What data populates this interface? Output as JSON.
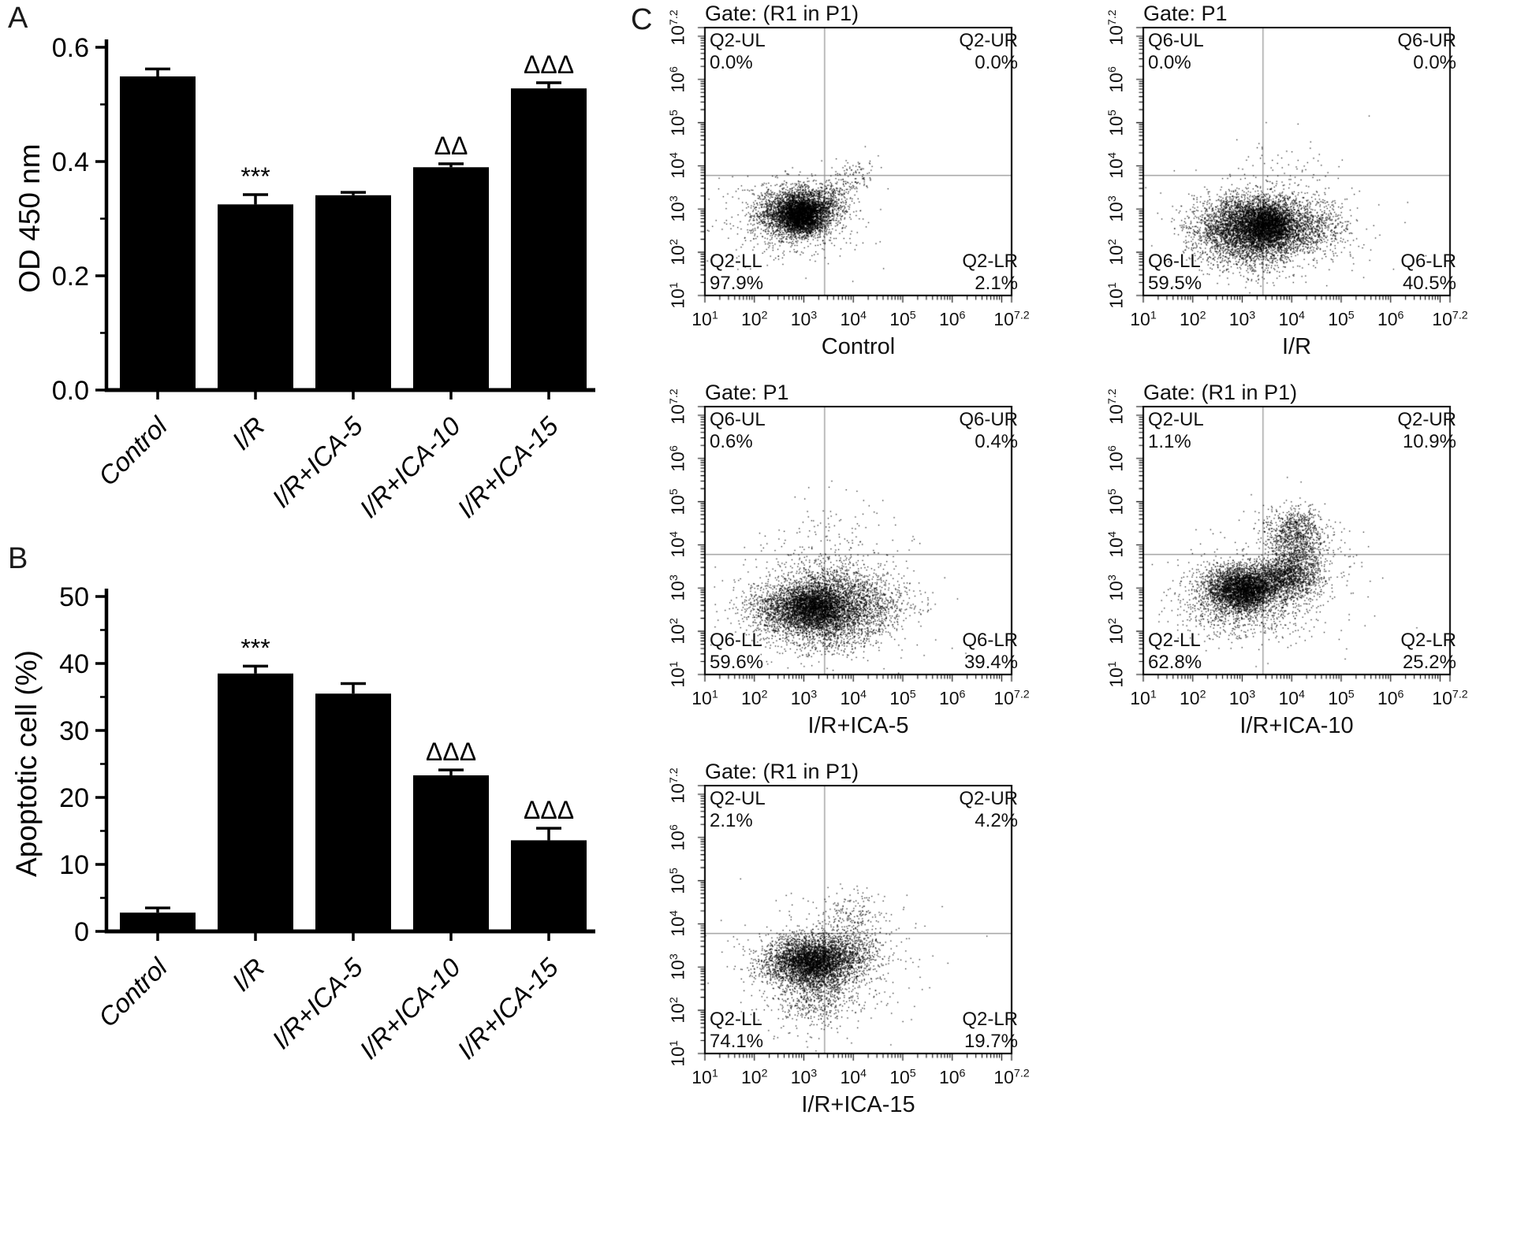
{
  "figure_label": {
    "a": "A",
    "b": "B",
    "c": "C"
  },
  "colors": {
    "foreground": "#000000",
    "background": "#ffffff",
    "quadrant_line": "#8f8f8f"
  },
  "chart_data": [
    {
      "id": "A",
      "type": "bar",
      "title": "",
      "xlabel": "",
      "ylabel": "OD 450 nm",
      "ylim": [
        0,
        0.6
      ],
      "grid": false,
      "legend": "none",
      "bar_color": "#000000",
      "yticks": [
        "0.0",
        "0.2",
        "0.4",
        "0.6"
      ],
      "ytick_values": [
        0,
        0.2,
        0.4,
        0.6
      ],
      "minor_ticks": [
        0.1,
        0.3,
        0.5
      ],
      "categories": [
        "Control",
        "I/R",
        "I/R+ICA-5",
        "I/R+ICA-10",
        "I/R+ICA-15"
      ],
      "values": [
        0.549,
        0.325,
        0.341,
        0.39,
        0.528
      ],
      "errors": [
        0.013,
        0.017,
        0.005,
        0.006,
        0.01
      ],
      "annotations": [
        "",
        "***",
        "",
        "ΔΔ",
        "ΔΔΔ"
      ]
    },
    {
      "id": "B",
      "type": "bar",
      "title": "",
      "xlabel": "",
      "ylabel": "Apoptotic cell (%)",
      "ylim": [
        0,
        50
      ],
      "grid": false,
      "legend": "none",
      "bar_color": "#000000",
      "yticks": [
        "0",
        "10",
        "20",
        "30",
        "40",
        "50"
      ],
      "ytick_values": [
        0,
        10,
        20,
        30,
        40,
        50
      ],
      "minor_ticks": [
        5,
        15,
        25,
        35,
        45
      ],
      "categories": [
        "Control",
        "I/R",
        "I/R+ICA-5",
        "I/R+ICA-10",
        "I/R+ICA-15"
      ],
      "values": [
        2.8,
        38.5,
        35.5,
        23.3,
        13.6
      ],
      "errors": [
        0.7,
        1.1,
        1.5,
        0.8,
        1.8
      ],
      "annotations": [
        "",
        "***",
        "",
        "ΔΔΔ",
        "ΔΔΔ"
      ]
    },
    {
      "id": "C",
      "type": "scatter",
      "subtype": "flow-cytometry-quadrant",
      "axis": {
        "scale": "log10",
        "range": [
          1,
          7.2
        ],
        "tick_exponents": [
          "1",
          "2",
          "3",
          "4",
          "5",
          "6",
          "7.2"
        ],
        "divider_x": 3.42,
        "divider_y": 3.78
      },
      "plots": [
        {
          "gate": "Gate: (R1 in P1)",
          "caption": "Control",
          "seed": 11,
          "quadrants": {
            "ul": {
              "name": "Q2-UL",
              "pct": "0.0%"
            },
            "ur": {
              "name": "Q2-UR",
              "pct": "0.0%"
            },
            "ll": {
              "name": "Q2-LL",
              "pct": "97.9%"
            },
            "lr": {
              "name": "Q2-LR",
              "pct": "2.1%"
            }
          },
          "clusters": [
            [
              2.78,
              2.92,
              0.38,
              0.3,
              2200
            ],
            [
              2.95,
              2.85,
              0.22,
              0.2,
              2200
            ],
            [
              3.25,
              3.0,
              0.3,
              0.28,
              700
            ],
            [
              3.6,
              3.2,
              0.15,
              0.2,
              110
            ],
            [
              3.9,
              3.55,
              0.18,
              0.22,
              90
            ],
            [
              4.15,
              3.9,
              0.15,
              0.2,
              45
            ],
            [
              2.6,
              2.6,
              0.75,
              0.55,
              300
            ]
          ]
        },
        {
          "gate": "Gate: P1",
          "caption": "I/R",
          "seed": 22,
          "quadrants": {
            "ul": {
              "name": "Q6-UL",
              "pct": "0.0%"
            },
            "ur": {
              "name": "Q6-UR",
              "pct": "0.0%"
            },
            "ll": {
              "name": "Q6-LL",
              "pct": "59.5%"
            },
            "lr": {
              "name": "Q6-LR",
              "pct": "40.5%"
            }
          },
          "clusters": [
            [
              3.3,
              2.55,
              0.55,
              0.33,
              2600
            ],
            [
              3.5,
              2.6,
              0.28,
              0.25,
              2200
            ],
            [
              2.7,
              2.5,
              0.4,
              0.32,
              900
            ],
            [
              4.3,
              2.6,
              0.45,
              0.33,
              700
            ],
            [
              3.4,
              3.05,
              0.5,
              0.25,
              500
            ],
            [
              3.3,
              1.95,
              0.5,
              0.28,
              400
            ],
            [
              3.5,
              2.7,
              1.1,
              0.7,
              260
            ],
            [
              3.9,
              3.95,
              0.5,
              0.4,
              50
            ]
          ]
        },
        {
          "gate": "Gate: P1",
          "caption": "I/R+ICA-5",
          "seed": 33,
          "quadrants": {
            "ul": {
              "name": "Q6-UL",
              "pct": "0.6%"
            },
            "ur": {
              "name": "Q6-UR",
              "pct": "0.4%"
            },
            "ll": {
              "name": "Q6-LL",
              "pct": "59.6%"
            },
            "lr": {
              "name": "Q6-LR",
              "pct": "39.4%"
            }
          },
          "clusters": [
            [
              3.3,
              2.5,
              0.6,
              0.33,
              2600
            ],
            [
              3.2,
              2.55,
              0.3,
              0.25,
              1800
            ],
            [
              4.2,
              2.6,
              0.5,
              0.35,
              700
            ],
            [
              2.5,
              2.45,
              0.4,
              0.3,
              500
            ],
            [
              3.5,
              3.15,
              0.6,
              0.28,
              500
            ],
            [
              3.4,
              1.85,
              0.5,
              0.25,
              350
            ],
            [
              3.6,
              4.0,
              0.7,
              0.55,
              150
            ],
            [
              3.4,
              2.7,
              1.2,
              0.8,
              220
            ]
          ]
        },
        {
          "gate": "Gate: (R1 in P1)",
          "caption": "I/R+ICA-10",
          "seed": 44,
          "quadrants": {
            "ul": {
              "name": "Q2-UL",
              "pct": "1.1%"
            },
            "ur": {
              "name": "Q2-UR",
              "pct": "10.9%"
            },
            "ll": {
              "name": "Q2-LL",
              "pct": "62.8%"
            },
            "lr": {
              "name": "Q2-LR",
              "pct": "25.2%"
            }
          },
          "clusters": [
            [
              2.9,
              3.0,
              0.38,
              0.27,
              2400
            ],
            [
              3.15,
              2.95,
              0.25,
              0.22,
              1200
            ],
            [
              3.9,
              3.25,
              0.33,
              0.28,
              1500
            ],
            [
              4.05,
              4.3,
              0.3,
              0.28,
              750
            ],
            [
              4.2,
              3.75,
              0.35,
              0.3,
              350
            ],
            [
              2.6,
              2.55,
              0.5,
              0.38,
              350
            ],
            [
              3.4,
              2.45,
              0.6,
              0.38,
              320
            ],
            [
              3.5,
              3.2,
              1.1,
              0.8,
              220
            ]
          ]
        },
        {
          "gate": "Gate: (R1 in P1)",
          "caption": "I/R+ICA-15",
          "seed": 55,
          "quadrants": {
            "ul": {
              "name": "Q2-UL",
              "pct": "2.1%"
            },
            "ur": {
              "name": "Q2-UR",
              "pct": "4.2%"
            },
            "ll": {
              "name": "Q2-LL",
              "pct": "74.1%"
            },
            "lr": {
              "name": "Q2-LR",
              "pct": "19.7%"
            }
          },
          "clusters": [
            [
              2.95,
              3.15,
              0.42,
              0.27,
              2300
            ],
            [
              3.3,
              3.1,
              0.3,
              0.25,
              1300
            ],
            [
              3.85,
              3.3,
              0.4,
              0.3,
              850
            ],
            [
              3.3,
              2.55,
              0.5,
              0.3,
              500
            ],
            [
              4.0,
              4.15,
              0.4,
              0.3,
              200
            ],
            [
              3.2,
              2.05,
              0.5,
              0.33,
              220
            ],
            [
              3.4,
              3.0,
              1.1,
              0.8,
              220
            ]
          ]
        }
      ]
    }
  ]
}
